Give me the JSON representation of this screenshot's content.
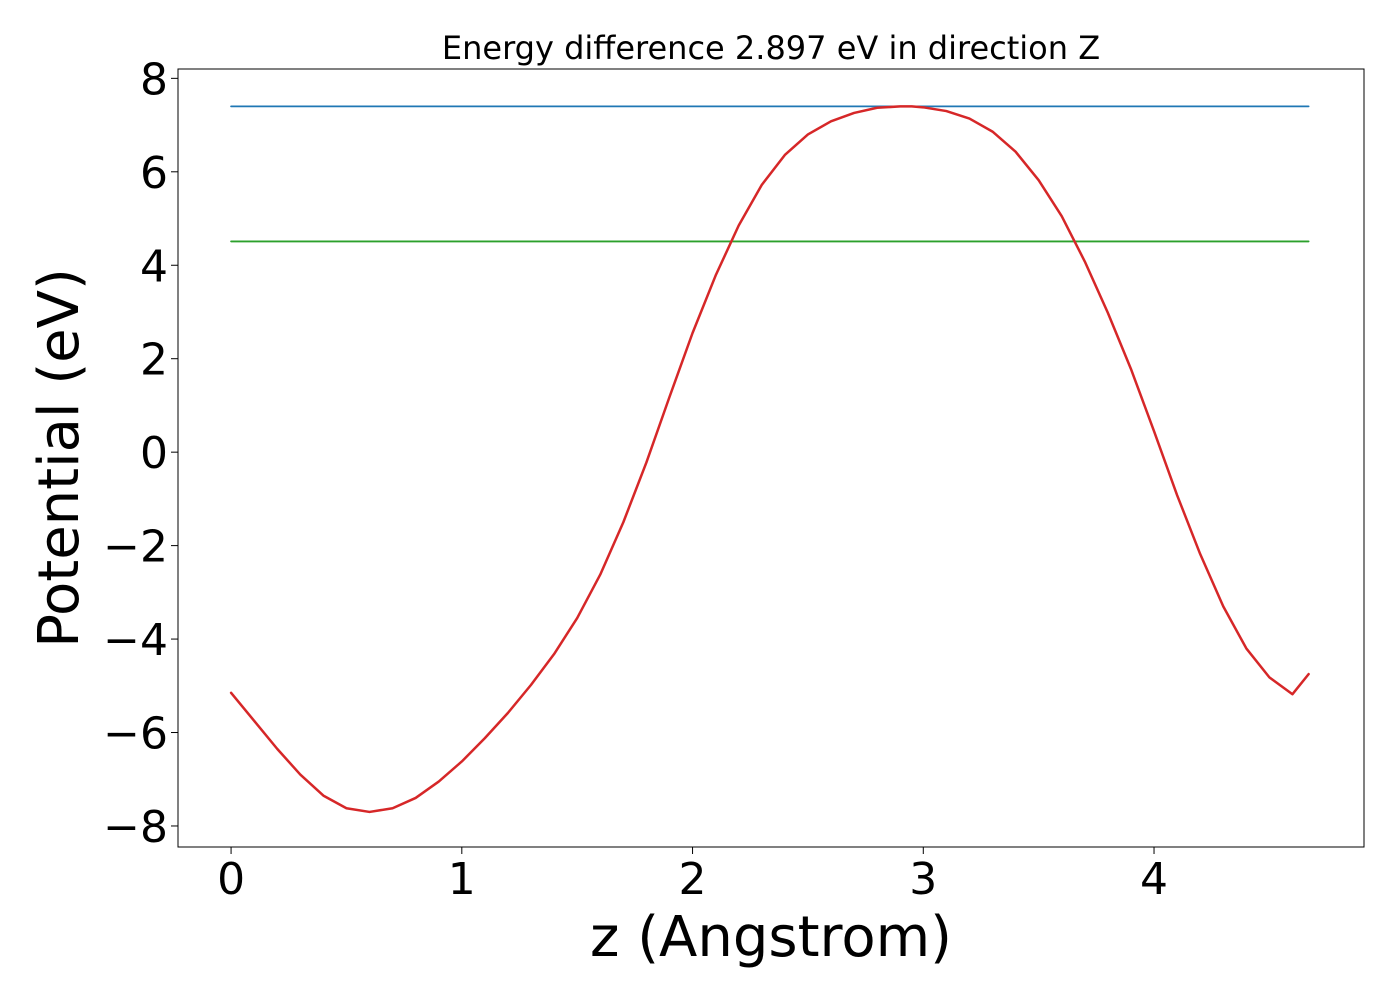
{
  "chart_data": {
    "type": "line",
    "title": "Energy difference 2.897 eV in direction Z",
    "xlabel": "z (Angstrom)",
    "ylabel": "Potential (eV)",
    "xlim": [
      -0.23,
      4.91
    ],
    "ylim": [
      -8.45,
      8.2
    ],
    "xticks": [
      0,
      1,
      2,
      3,
      4
    ],
    "xtick_labels": [
      "0",
      "1",
      "2",
      "3",
      "4"
    ],
    "yticks": [
      -8,
      -6,
      -4,
      -2,
      0,
      2,
      4,
      6,
      8
    ],
    "ytick_labels": [
      "−8",
      "−6",
      "−4",
      "−2",
      "0",
      "2",
      "4",
      "6",
      "8"
    ],
    "grid": false,
    "series": [
      {
        "color": "#1f77b4",
        "x": [
          0,
          4.67
        ],
        "y": [
          7.4,
          7.4
        ]
      },
      {
        "color": "#2ca02c",
        "x": [
          0,
          4.67
        ],
        "y": [
          4.51,
          4.51
        ]
      },
      {
        "color": "#d62728",
        "x": [
          0,
          0.1,
          0.2,
          0.3,
          0.4,
          0.5,
          0.6,
          0.7,
          0.8,
          0.9,
          1.0,
          1.1,
          1.2,
          1.3,
          1.4,
          1.5,
          1.6,
          1.7,
          1.8,
          1.9,
          2.0,
          2.1,
          2.2,
          2.3,
          2.4,
          2.5,
          2.6,
          2.7,
          2.8,
          2.9,
          2.95,
          3.0,
          3.1,
          3.2,
          3.3,
          3.4,
          3.5,
          3.6,
          3.7,
          3.8,
          3.9,
          4.0,
          4.1,
          4.2,
          4.3,
          4.4,
          4.5,
          4.6,
          4.67
        ],
        "y": [
          -5.15,
          -5.75,
          -6.35,
          -6.9,
          -7.35,
          -7.62,
          -7.7,
          -7.62,
          -7.4,
          -7.05,
          -6.62,
          -6.12,
          -5.58,
          -4.98,
          -4.32,
          -3.55,
          -2.62,
          -1.5,
          -0.22,
          1.18,
          2.55,
          3.78,
          4.85,
          5.72,
          6.36,
          6.8,
          7.08,
          7.26,
          7.37,
          7.4,
          7.4,
          7.38,
          7.3,
          7.14,
          6.86,
          6.43,
          5.82,
          5.05,
          4.08,
          2.98,
          1.78,
          0.45,
          -0.92,
          -2.18,
          -3.3,
          -4.2,
          -4.82,
          -5.18,
          -4.75
        ]
      }
    ]
  }
}
